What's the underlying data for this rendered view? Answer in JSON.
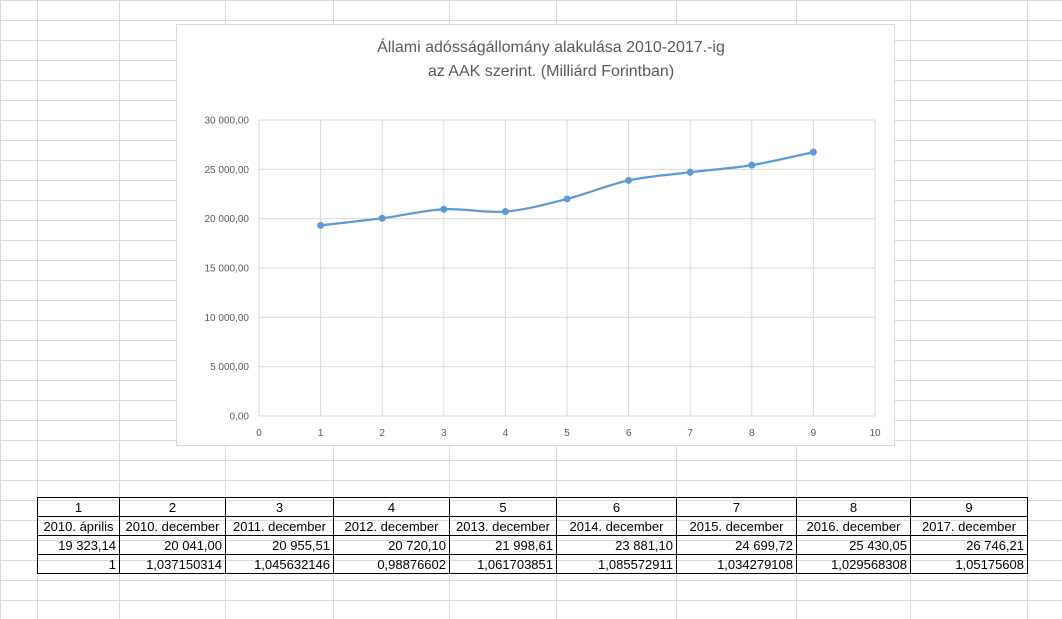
{
  "chart_data": {
    "type": "scatter",
    "title_lines": [
      "Állami adósságállomány alakulása 2010-2017.-ig",
      "az AAK szerint. (Milliárd Forintban)"
    ],
    "x": [
      1,
      2,
      3,
      4,
      5,
      6,
      7,
      8,
      9
    ],
    "y": [
      19323.14,
      20041.0,
      20955.51,
      20720.1,
      21998.61,
      23881.1,
      24699.72,
      25430.05,
      26746.21
    ],
    "xlim": [
      0,
      10
    ],
    "ylim": [
      0,
      30000
    ],
    "x_ticks": [
      "0",
      "1",
      "2",
      "3",
      "4",
      "5",
      "6",
      "7",
      "8",
      "9",
      "10"
    ],
    "y_ticks": [
      "0,00",
      "5 000,00",
      "10 000,00",
      "15 000,00",
      "20 000,00",
      "25 000,00",
      "30 000,00"
    ],
    "grid": true,
    "smooth": true,
    "color": "#5b9bd5"
  },
  "table": {
    "index_row": [
      "1",
      "2",
      "3",
      "4",
      "5",
      "6",
      "7",
      "8",
      "9"
    ],
    "period_row": [
      "2010. április",
      "2010. december",
      "2011. december",
      "2012. december",
      "2013. december",
      "2014. december",
      "2015. december",
      "2016. december",
      "2017. december"
    ],
    "value_row": [
      "19 323,14",
      "20 041,00",
      "20 955,51",
      "20 720,10",
      "21 998,61",
      "23 881,10",
      "24 699,72",
      "25 430,05",
      "26 746,21"
    ],
    "ratio_row": [
      "1",
      "1,037150314",
      "1,045632146",
      "0,98876602",
      "1,061703851",
      "1,085572911",
      "1,034279108",
      "1,029568308",
      "1,05175608"
    ]
  }
}
